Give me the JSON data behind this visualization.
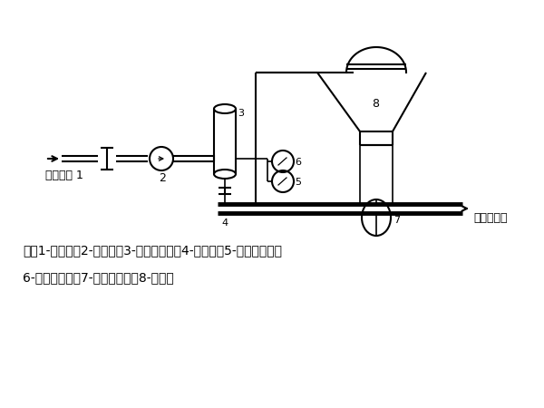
{
  "bg_color": "#ffffff",
  "line_color": "#000000",
  "note_line1": "注：1-节流阀；2-流量计；3-气水分离器；4-安全阀；5-管道压力表；",
  "note_line2": "6-灰罐压力表；7-发送器转鼓；8-灰罐。",
  "label_compressed_air": "压缩空气 1",
  "label_outlet": "气粉混合物",
  "label_1": "1",
  "label_2": "2",
  "label_3": "3",
  "label_4": "4",
  "label_5": "5",
  "label_6": "6",
  "label_7": "7",
  "label_8": "8"
}
